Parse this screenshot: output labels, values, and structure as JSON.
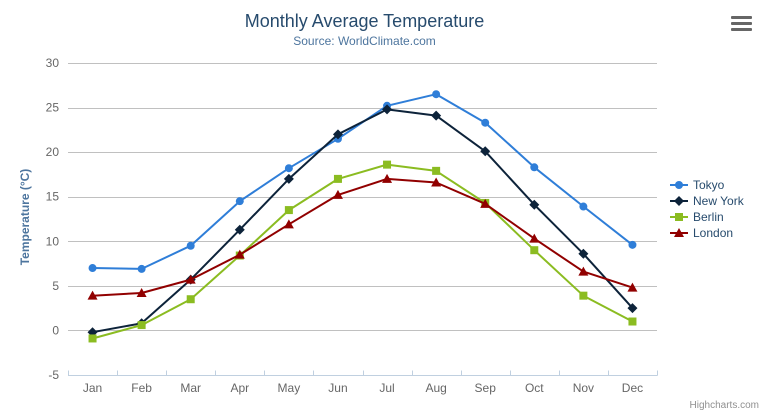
{
  "credits": "Highcharts.com",
  "export_menu": {
    "icon": "hamburger-icon"
  },
  "chart_data": {
    "type": "line",
    "title": "Monthly Average Temperature",
    "subtitle": "Source: WorldClimate.com",
    "xlabel": "",
    "ylabel": "Temperature (°C)",
    "categories": [
      "Jan",
      "Feb",
      "Mar",
      "Apr",
      "May",
      "Jun",
      "Jul",
      "Aug",
      "Sep",
      "Oct",
      "Nov",
      "Dec"
    ],
    "ylim": [
      -5,
      30
    ],
    "ytick_interval": 5,
    "grid": "horizontal",
    "legend_position": "right",
    "colors": {
      "grid_line": "#C0C0C0",
      "axis_line": "#C0D0E0",
      "axis_label": "#666666",
      "title": "#274b6d",
      "subtitle": "#4d759e",
      "legend_text": "#274b6d"
    },
    "series": [
      {
        "name": "Tokyo",
        "color": "#2f7ed8",
        "marker": "circle",
        "values": [
          7.0,
          6.9,
          9.5,
          14.5,
          18.2,
          21.5,
          25.2,
          26.5,
          23.3,
          18.3,
          13.9,
          9.6
        ]
      },
      {
        "name": "New York",
        "color": "#0d233a",
        "marker": "diamond",
        "values": [
          -0.2,
          0.8,
          5.7,
          11.3,
          17.0,
          22.0,
          24.8,
          24.1,
          20.1,
          14.1,
          8.6,
          2.5
        ]
      },
      {
        "name": "Berlin",
        "color": "#8bbc21",
        "marker": "square",
        "values": [
          -0.9,
          0.6,
          3.5,
          8.4,
          13.5,
          17.0,
          18.6,
          17.9,
          14.3,
          9.0,
          3.9,
          1.0
        ]
      },
      {
        "name": "London",
        "color": "#910000",
        "marker": "triangle",
        "values": [
          3.9,
          4.2,
          5.7,
          8.5,
          11.9,
          15.2,
          17.0,
          16.6,
          14.2,
          10.3,
          6.6,
          4.8
        ]
      }
    ]
  }
}
